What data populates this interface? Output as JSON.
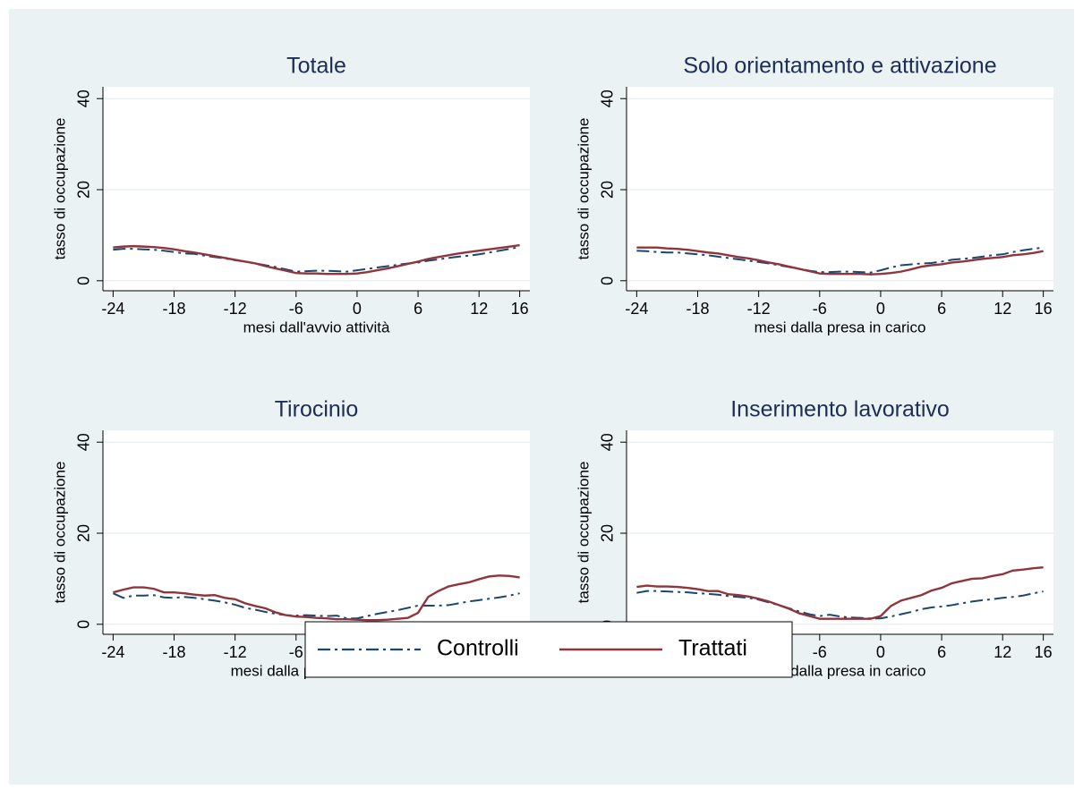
{
  "chart_data": [
    {
      "type": "line",
      "title": "Totale",
      "x_label": "mesi dall'avvio attività",
      "y_label": "tasso di occupazione",
      "x": [
        -24,
        -23,
        -22,
        -21,
        -20,
        -19,
        -18,
        -17,
        -16,
        -15,
        -14,
        -13,
        -12,
        -11,
        -10,
        -9,
        -8,
        -7,
        -6,
        -5,
        -4,
        -3,
        -2,
        -1,
        0,
        1,
        2,
        3,
        4,
        5,
        6,
        7,
        8,
        9,
        10,
        11,
        12,
        13,
        14,
        15,
        16
      ],
      "series": [
        {
          "values": [
            6.8,
            7.0,
            7.0,
            6.9,
            6.8,
            6.6,
            6.3,
            6.0,
            5.9,
            5.5,
            5.2,
            4.9,
            4.5,
            4.2,
            3.8,
            3.4,
            3.0,
            2.5,
            2.0,
            2.1,
            2.2,
            2.2,
            2.1,
            2.0,
            2.3,
            2.6,
            2.9,
            3.2,
            3.5,
            3.8,
            4.0,
            4.4,
            4.7,
            5.0,
            5.3,
            5.5,
            5.8,
            6.2,
            6.6,
            7.0,
            7.4
          ]
        },
        {
          "values": [
            7.3,
            7.5,
            7.6,
            7.5,
            7.4,
            7.2,
            6.9,
            6.5,
            6.2,
            5.8,
            5.4,
            5.0,
            4.6,
            4.2,
            3.8,
            3.2,
            2.7,
            2.2,
            1.7,
            1.6,
            1.6,
            1.5,
            1.5,
            1.5,
            1.6,
            1.9,
            2.3,
            2.7,
            3.2,
            3.7,
            4.2,
            4.8,
            5.2,
            5.6,
            6.0,
            6.3,
            6.6,
            6.9,
            7.2,
            7.5,
            7.8
          ]
        }
      ],
      "xlim": [
        -25,
        17
      ],
      "xticks": [
        -24,
        -18,
        -12,
        -6,
        0,
        6,
        12,
        16
      ],
      "ylim": [
        -2.2,
        42.6
      ],
      "yticks": [
        0,
        20,
        40
      ],
      "grid": true
    },
    {
      "type": "line",
      "title": "Solo orientamento e attivazione",
      "x_label": "mesi dalla presa in carico",
      "y_label": "tasso di occupazione",
      "x": [
        -24,
        -23,
        -22,
        -21,
        -20,
        -19,
        -18,
        -17,
        -16,
        -15,
        -14,
        -13,
        -12,
        -11,
        -10,
        -9,
        -8,
        -7,
        -6,
        -5,
        -4,
        -3,
        -2,
        -1,
        0,
        1,
        2,
        3,
        4,
        5,
        6,
        7,
        8,
        9,
        10,
        11,
        12,
        13,
        14,
        15,
        16
      ],
      "series": [
        {
          "values": [
            6.6,
            6.5,
            6.3,
            6.2,
            6.2,
            6.0,
            5.8,
            5.6,
            5.3,
            5.0,
            4.7,
            4.4,
            4.1,
            3.8,
            3.4,
            3.0,
            2.6,
            2.2,
            1.9,
            1.9,
            2.0,
            2.0,
            1.9,
            1.8,
            2.3,
            2.9,
            3.4,
            3.6,
            3.8,
            3.9,
            4.2,
            4.6,
            4.8,
            5.0,
            5.3,
            5.6,
            5.8,
            6.3,
            6.7,
            7.0,
            7.3
          ]
        },
        {
          "values": [
            7.3,
            7.3,
            7.3,
            7.1,
            7.0,
            6.8,
            6.5,
            6.2,
            6.0,
            5.6,
            5.2,
            4.9,
            4.5,
            4.0,
            3.6,
            3.1,
            2.6,
            2.1,
            1.6,
            1.5,
            1.5,
            1.5,
            1.5,
            1.4,
            1.5,
            1.7,
            2.0,
            2.5,
            3.1,
            3.4,
            3.6,
            4.0,
            4.2,
            4.5,
            4.8,
            5.0,
            5.2,
            5.6,
            5.8,
            6.1,
            6.5
          ]
        }
      ],
      "xlim": [
        -25,
        17
      ],
      "xticks": [
        -24,
        -18,
        -12,
        -6,
        0,
        6,
        12,
        16
      ],
      "ylim": [
        -2.2,
        42.6
      ],
      "yticks": [
        0,
        20,
        40
      ],
      "grid": true
    },
    {
      "type": "line",
      "title": "Tirocinio",
      "x_label": "mesi dalla presa in carico",
      "y_label": "tasso di occupazione",
      "x": [
        -24,
        -23,
        -22,
        -21,
        -20,
        -19,
        -18,
        -17,
        -16,
        -15,
        -14,
        -13,
        -12,
        -11,
        -10,
        -9,
        -8,
        -7,
        -6,
        -5,
        -4,
        -3,
        -2,
        -1,
        0,
        1,
        2,
        3,
        4,
        5,
        6,
        7,
        8,
        9,
        10,
        11,
        12,
        13,
        14,
        15,
        16
      ],
      "series": [
        {
          "values": [
            6.8,
            5.8,
            6.3,
            6.3,
            6.4,
            5.9,
            5.8,
            6.0,
            5.8,
            5.5,
            5.2,
            4.8,
            4.3,
            3.6,
            3.2,
            2.7,
            2.3,
            2.0,
            1.9,
            2.0,
            1.9,
            1.8,
            1.9,
            1.3,
            1.3,
            1.8,
            2.3,
            2.7,
            3.1,
            3.6,
            4.1,
            4.1,
            4.1,
            4.2,
            4.6,
            5.0,
            5.3,
            5.6,
            5.9,
            6.3,
            6.8
          ]
        },
        {
          "values": [
            7.0,
            7.6,
            8.1,
            8.1,
            7.8,
            7.0,
            7.0,
            6.8,
            6.5,
            6.3,
            6.4,
            5.8,
            5.5,
            4.6,
            4.0,
            3.5,
            2.6,
            2.0,
            1.7,
            1.6,
            1.4,
            1.3,
            1.1,
            1.1,
            1.0,
            0.9,
            0.9,
            1.0,
            1.2,
            1.4,
            2.5,
            6.0,
            7.3,
            8.3,
            8.8,
            9.2,
            9.9,
            10.5,
            10.7,
            10.6,
            10.3
          ]
        }
      ],
      "xlim": [
        -25,
        17
      ],
      "xticks": [
        -24,
        -18,
        -12,
        -6,
        0,
        6,
        12,
        16
      ],
      "ylim": [
        -2.2,
        42.6
      ],
      "yticks": [
        0,
        20,
        40
      ],
      "grid": true
    },
    {
      "type": "line",
      "title": "Inserimento lavorativo",
      "x_label": "mesi dalla presa in carico",
      "y_label": "tasso di occupazione",
      "x": [
        -24,
        -23,
        -22,
        -21,
        -20,
        -19,
        -18,
        -17,
        -16,
        -15,
        -14,
        -13,
        -12,
        -11,
        -10,
        -9,
        -8,
        -7,
        -6,
        -5,
        -4,
        -3,
        -2,
        -1,
        0,
        1,
        2,
        3,
        4,
        5,
        6,
        7,
        8,
        9,
        10,
        11,
        12,
        13,
        14,
        15,
        16
      ],
      "series": [
        {
          "values": [
            6.9,
            7.3,
            7.3,
            7.2,
            7.1,
            7.0,
            6.8,
            6.7,
            6.5,
            6.2,
            6.0,
            5.8,
            5.4,
            4.8,
            4.2,
            3.5,
            2.8,
            2.2,
            1.8,
            2.1,
            1.7,
            1.5,
            1.4,
            1.3,
            1.3,
            1.7,
            2.2,
            2.7,
            3.3,
            3.7,
            3.9,
            4.2,
            4.6,
            5.0,
            5.3,
            5.5,
            5.8,
            6.0,
            6.3,
            6.8,
            7.2
          ]
        },
        {
          "values": [
            8.2,
            8.5,
            8.3,
            8.3,
            8.2,
            8.0,
            7.7,
            7.3,
            7.3,
            6.6,
            6.4,
            6.1,
            5.6,
            5.0,
            4.2,
            3.4,
            2.4,
            1.8,
            1.2,
            1.2,
            1.2,
            1.2,
            1.2,
            1.2,
            1.8,
            4.0,
            5.2,
            5.8,
            6.4,
            7.4,
            8.0,
            9.0,
            9.5,
            10.0,
            10.1,
            10.6,
            11.0,
            11.8,
            12.0,
            12.3,
            12.5
          ]
        }
      ],
      "xlim": [
        -25,
        17
      ],
      "xticks": [
        -24,
        -18,
        -12,
        -6,
        0,
        6,
        12,
        16
      ],
      "ylim": [
        -2.2,
        42.6
      ],
      "yticks": [
        0,
        20,
        40
      ],
      "grid": true
    }
  ],
  "legend": {
    "position": "bottom",
    "entries": [
      {
        "name": "Controlli",
        "color": "#1a476f",
        "dash": "dashdot"
      },
      {
        "name": "Trattati",
        "color": "#90353b",
        "dash": "solid"
      }
    ]
  }
}
